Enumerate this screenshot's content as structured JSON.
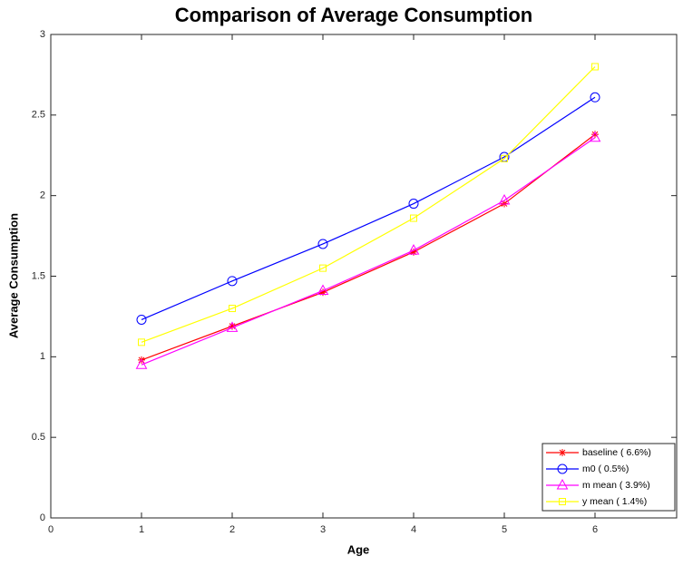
{
  "chart_data": {
    "type": "line",
    "title": "Comparison of Average Consumption",
    "x_label": "Age",
    "y_label": "Average Consumption",
    "x": [
      1,
      2,
      3,
      4,
      5,
      6
    ],
    "series": [
      {
        "name": "baseline ( 6.6%)",
        "color": "#ff0000",
        "marker": "star",
        "values": [
          0.98,
          1.19,
          1.4,
          1.65,
          1.95,
          2.38
        ]
      },
      {
        "name": "m0 ( 0.5%)",
        "color": "#0000ff",
        "marker": "circle",
        "values": [
          1.23,
          1.47,
          1.7,
          1.95,
          2.24,
          2.61
        ]
      },
      {
        "name": "m mean ( 3.9%)",
        "color": "#ff00ff",
        "marker": "triangle",
        "values": [
          0.95,
          1.18,
          1.41,
          1.66,
          1.97,
          2.36
        ]
      },
      {
        "name": "y mean ( 1.4%)",
        "color": "#ffff00",
        "marker": "square",
        "values": [
          1.09,
          1.3,
          1.55,
          1.86,
          2.23,
          2.8
        ]
      }
    ],
    "xlim": [
      0,
      6.9
    ],
    "xticks": [
      0,
      1,
      2,
      3,
      4,
      5,
      6
    ],
    "ylim": [
      0,
      3
    ],
    "yticks": [
      0,
      0.5,
      1,
      1.5,
      2,
      2.5,
      3
    ],
    "legend": "lower right",
    "grid": false
  }
}
